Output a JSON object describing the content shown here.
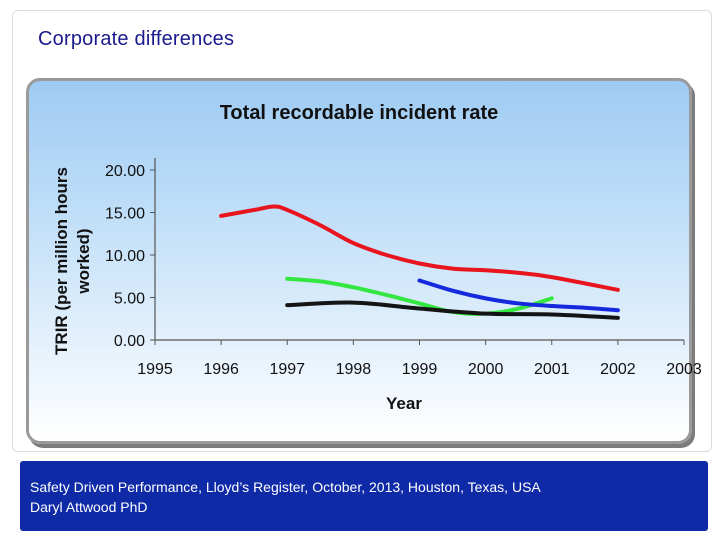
{
  "slide": {
    "title": "Corporate differences"
  },
  "footer": {
    "line1": "Safety Driven Performance, Lloyd’s Register, October, 2013, Houston, Texas, USA",
    "line2": "Daryl Attwood PhD"
  },
  "colors": {
    "red": "#e8141e",
    "green": "#33e640",
    "blue": "#1428dc",
    "black": "#141414",
    "title_text": "#1a1a8c",
    "footer_bg": "#0f2aa6"
  },
  "chart_data": {
    "type": "line",
    "title": "Total recordable incident rate",
    "xlabel": "Year",
    "ylabel_lines": [
      "TRIR (per million hours",
      "worked)"
    ],
    "xlim": [
      1995,
      2003
    ],
    "ylim": [
      0,
      20
    ],
    "x_ticks": [
      "1995",
      "1996",
      "1997",
      "1998",
      "1999",
      "2000",
      "2001",
      "2002",
      "2003"
    ],
    "y_ticks": [
      "0.00",
      "5.00",
      "10.00",
      "15.00",
      "20.00"
    ],
    "grid": false,
    "legend": "none",
    "series": [
      {
        "name": "red",
        "color": "#e8141e",
        "x": [
          1996,
          1996.5,
          1996.8,
          1997,
          1997.5,
          1998,
          1998.5,
          1999,
          1999.5,
          2000,
          2000.5,
          2001,
          2002
        ],
        "y": [
          14.6,
          15.3,
          15.7,
          15.3,
          13.5,
          11.4,
          10.0,
          9.0,
          8.4,
          8.2,
          7.9,
          7.4,
          5.9
        ]
      },
      {
        "name": "green",
        "color": "#33e640",
        "x": [
          1997,
          1997.5,
          1998,
          1998.5,
          1999,
          1999.5,
          2000,
          2000.5,
          2001
        ],
        "y": [
          7.2,
          6.9,
          6.2,
          5.3,
          4.3,
          3.3,
          3.1,
          3.7,
          4.9
        ]
      },
      {
        "name": "blue",
        "color": "#1428dc",
        "x": [
          1999,
          1999.5,
          2000,
          2000.5,
          2001,
          2001.5,
          2002
        ],
        "y": [
          7.0,
          5.8,
          4.9,
          4.3,
          4.0,
          3.8,
          3.5
        ]
      },
      {
        "name": "black",
        "color": "#141414",
        "x": [
          1997,
          1998,
          1999,
          2000,
          2001,
          2002
        ],
        "y": [
          4.1,
          4.4,
          3.7,
          3.1,
          3.0,
          2.6
        ]
      }
    ]
  }
}
